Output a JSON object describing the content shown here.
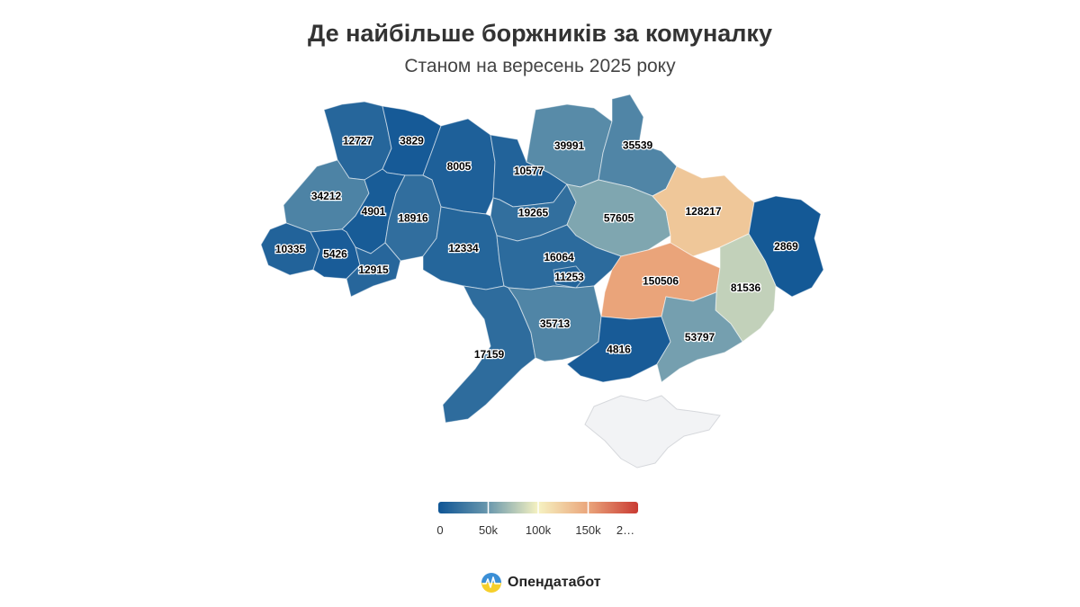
{
  "title": "Де найбільше боржників за комуналку",
  "subtitle": "Станом на вересень 2025 року",
  "brand": {
    "name": "Опендатабот",
    "logo_icon": "opendatabot-logo-icon"
  },
  "colors": {
    "scale": [
      "#0f5595",
      "#6a98ad",
      "#f6f2c1",
      "#eaa57b",
      "#c93a32"
    ],
    "no_data": "#f2f3f5"
  },
  "legend": {
    "min": 0,
    "max": 200000,
    "ticks": [
      "0",
      "50k",
      "100k",
      "150k",
      "2…"
    ]
  },
  "regions": [
    {
      "name": "Volyn",
      "value": 12727
    },
    {
      "name": "Rivne",
      "value": 3829
    },
    {
      "name": "Zhytomyr",
      "value": 8005
    },
    {
      "name": "Kyiv Oblast",
      "value": 10577
    },
    {
      "name": "Chernihiv",
      "value": 39991
    },
    {
      "name": "Sumy",
      "value": 35539
    },
    {
      "name": "Lviv",
      "value": 34212
    },
    {
      "name": "Ternopil",
      "value": 4901
    },
    {
      "name": "Khmelnytskyi",
      "value": 18916
    },
    {
      "name": "Cherkasy",
      "value": 19265
    },
    {
      "name": "Poltava",
      "value": 57605
    },
    {
      "name": "Kharkiv",
      "value": 128217
    },
    {
      "name": "Luhansk",
      "value": 2869
    },
    {
      "name": "Zakarpattia",
      "value": 10335
    },
    {
      "name": "Ivano-Frankivsk",
      "value": 5426
    },
    {
      "name": "Chernivtsi",
      "value": 12915
    },
    {
      "name": "Vinnytsia",
      "value": 12334
    },
    {
      "name": "Kirovohrad",
      "value": 16064
    },
    {
      "name": "Dnipropetrovsk",
      "value": 150506
    },
    {
      "name": "Donetsk",
      "value": 81536
    },
    {
      "name": "Odesa",
      "value": 17159
    },
    {
      "name": "Mykolaiv",
      "value": 35713
    },
    {
      "name": "Kherson",
      "value": 4816
    },
    {
      "name": "Zaporizhzhia",
      "value": 53797
    },
    {
      "name": "Kyiv City",
      "value": 11253
    }
  ]
}
